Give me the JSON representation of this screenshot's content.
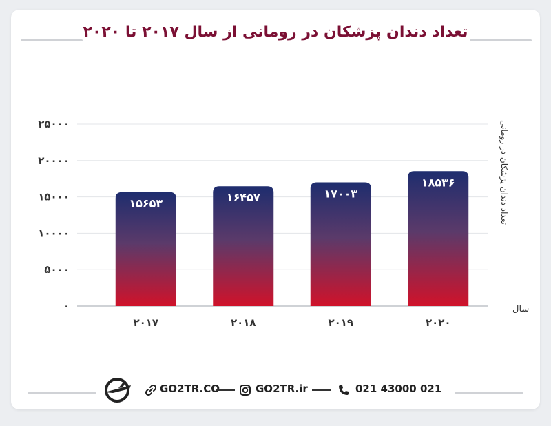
{
  "title": "تعداد دندان پزشکان در رومانی از سال ۲۰۱۷ تا ۲۰۲۰",
  "chart_data": {
    "type": "bar",
    "categories": [
      "2017",
      "2018",
      "2019",
      "2020"
    ],
    "values": [
      15653,
      16457,
      17003,
      18536
    ],
    "value_labels": [
      "۱۵۶۵۳",
      "۱۶۴۵۷",
      "۱۷۰۰۳",
      "۱۸۵۳۶"
    ],
    "ytick_labels": [
      "۰",
      "۵۰۰۰",
      "۱۰۰۰۰",
      "۱۵۰۰۰",
      "۲۰۰۰۰",
      "۲۵۰۰۰"
    ],
    "xtick_labels": [
      "۲۰۱۷",
      "۲۰۱۸",
      "۲۰۱۹",
      "۲۰۲۰"
    ],
    "ylabel": "تعداد دندان پزشکان در رومانی",
    "xlabel": "سال",
    "ylim": [
      0,
      25000
    ],
    "grid": true,
    "bar_gradient": {
      "top": "#1e2d6e",
      "bottom": "#d0122a"
    }
  },
  "footer": {
    "website": "GO2TR.CO",
    "instagram": "GO2TR.ir",
    "phone": "021 43000 021",
    "icons": [
      "logo-icon",
      "link-icon",
      "instagram-icon",
      "phone-icon"
    ]
  }
}
